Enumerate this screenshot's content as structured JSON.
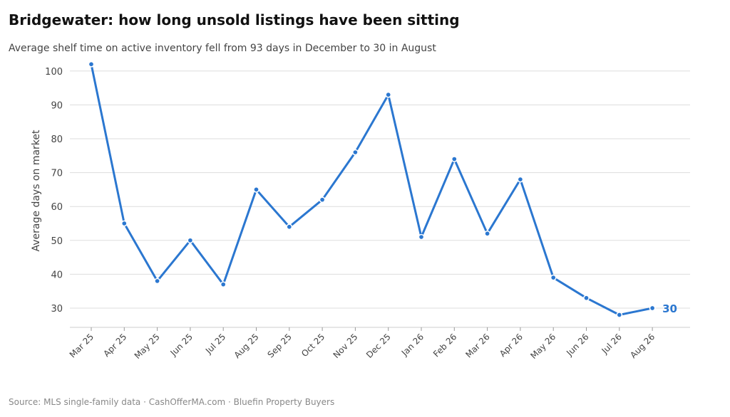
{
  "title": "Bridgewater: how long unsold listings have been sitting",
  "subtitle": "Average shelf time on active inventory fell from 93 days in December to 30 in August",
  "source": "Source: MLS single-family data  ·  CashOfferMA.com  ·  Bluefin Property Buyers",
  "colors": {
    "line": "#2b77d0",
    "grid": "#dddddd",
    "axis": "#cccccc",
    "tick_text": "#444444"
  },
  "chart_data": {
    "type": "line",
    "ylabel": "Average days on market",
    "xlabel": "",
    "grid": "horizontal",
    "ylim": [
      25,
      102
    ],
    "yticks": [
      30,
      40,
      50,
      60,
      70,
      80,
      90,
      100
    ],
    "categories": [
      "Mar 25",
      "Apr 25",
      "May 25",
      "Jun 25",
      "Jul 25",
      "Aug 25",
      "Sep 25",
      "Oct 25",
      "Nov 25",
      "Dec 25",
      "Jan 26",
      "Feb 26",
      "Mar 26",
      "Apr 26",
      "May 26",
      "Jun 26",
      "Jul 26",
      "Aug 26"
    ],
    "series": [
      {
        "values": [
          102,
          55,
          38,
          50,
          37,
          65,
          54,
          62,
          76,
          93,
          51,
          74,
          52,
          68,
          39,
          33,
          28,
          30
        ]
      }
    ],
    "end_label": "30"
  }
}
